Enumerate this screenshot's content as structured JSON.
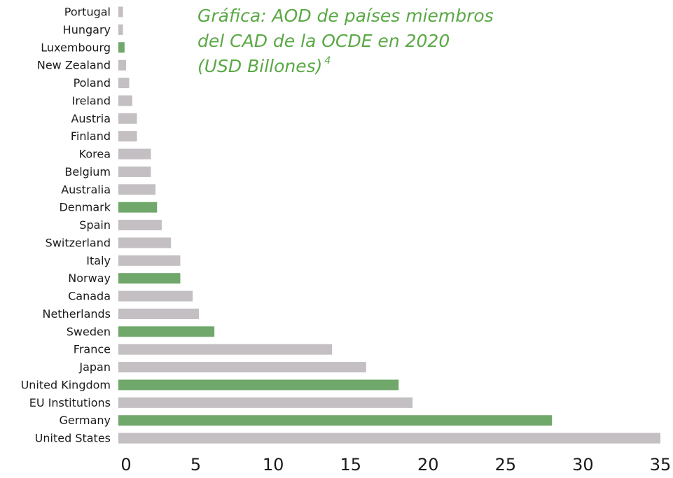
{
  "chart_data": {
    "type": "bar",
    "orientation": "horizontal",
    "title_lines": [
      "Gráfica: AOD de países miembros",
      "del CAD de la OCDE en 2020",
      "(USD Billones)"
    ],
    "title_note": "4",
    "categories": [
      "Portugal",
      "Hungary",
      "Luxembourg",
      "New Zealand",
      "Poland",
      "Ireland",
      "Austria",
      "Finland",
      "Korea",
      "Belgium",
      "Australia",
      "Denmark",
      "Spain",
      "Switzerland",
      "Italy",
      "Norway",
      "Canada",
      "Netherlands",
      "Sweden",
      "France",
      "Japan",
      "United Kingdom",
      "EU Institutions",
      "Germany",
      "United States"
    ],
    "values": [
      0.3,
      0.3,
      0.4,
      0.5,
      0.7,
      0.9,
      1.2,
      1.2,
      2.1,
      2.1,
      2.4,
      2.5,
      2.8,
      3.4,
      4.0,
      4.0,
      4.8,
      5.2,
      6.2,
      13.8,
      16.0,
      18.1,
      19.0,
      28.0,
      35.0
    ],
    "colors": [
      "#c3bfc3",
      "#c3bfc3",
      "#6fa86a",
      "#c3bfc3",
      "#c3bfc3",
      "#c3bfc3",
      "#c3bfc3",
      "#c3bfc3",
      "#c3bfc3",
      "#c3bfc3",
      "#c3bfc3",
      "#6fa86a",
      "#c3bfc3",
      "#c3bfc3",
      "#c3bfc3",
      "#6fa86a",
      "#c3bfc3",
      "#c3bfc3",
      "#6fa86a",
      "#c3bfc3",
      "#c3bfc3",
      "#6fa86a",
      "#c3bfc3",
      "#6fa86a",
      "#c3bfc3"
    ],
    "xlim": [
      0,
      35
    ],
    "xticks": [
      0,
      5,
      10,
      15,
      20,
      25,
      30,
      35
    ],
    "grid": false
  }
}
